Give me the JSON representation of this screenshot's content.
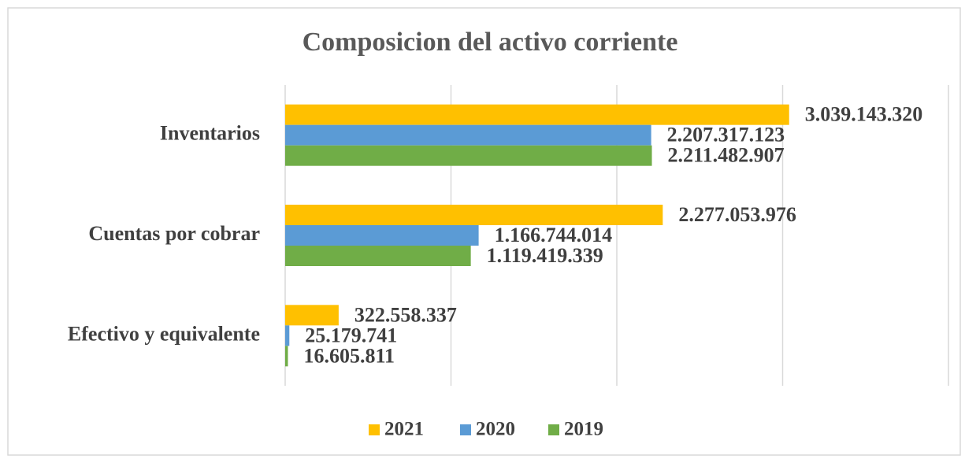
{
  "chart_data": {
    "type": "bar",
    "orientation": "horizontal",
    "title": "Composicion del activo corriente",
    "categories": [
      "Inventarios",
      "Cuentas por cobrar",
      "Efectivo y equivalente"
    ],
    "series": [
      {
        "name": "2021",
        "color": "#FFC000",
        "values": [
          3039143320,
          2277053976,
          322558337
        ],
        "value_labels": [
          "3.039.143.320",
          "2.277.053.976",
          "322.558.337"
        ]
      },
      {
        "name": "2020",
        "color": "#5B9BD5",
        "values": [
          2207317123,
          1166744014,
          25179741
        ],
        "value_labels": [
          "2.207.317.123",
          "1.166.744.014",
          "25.179.741"
        ]
      },
      {
        "name": "2019",
        "color": "#70AD47",
        "values": [
          2211482907,
          1119419339,
          16605811
        ],
        "value_labels": [
          "2.211.482.907",
          "1.119.419.339",
          "16.605.811"
        ]
      }
    ],
    "xlim": [
      0,
      4000000000
    ],
    "xticks": [
      0,
      1000000000,
      2000000000,
      3000000000,
      4000000000
    ],
    "grid": true,
    "legend": "bottom"
  }
}
